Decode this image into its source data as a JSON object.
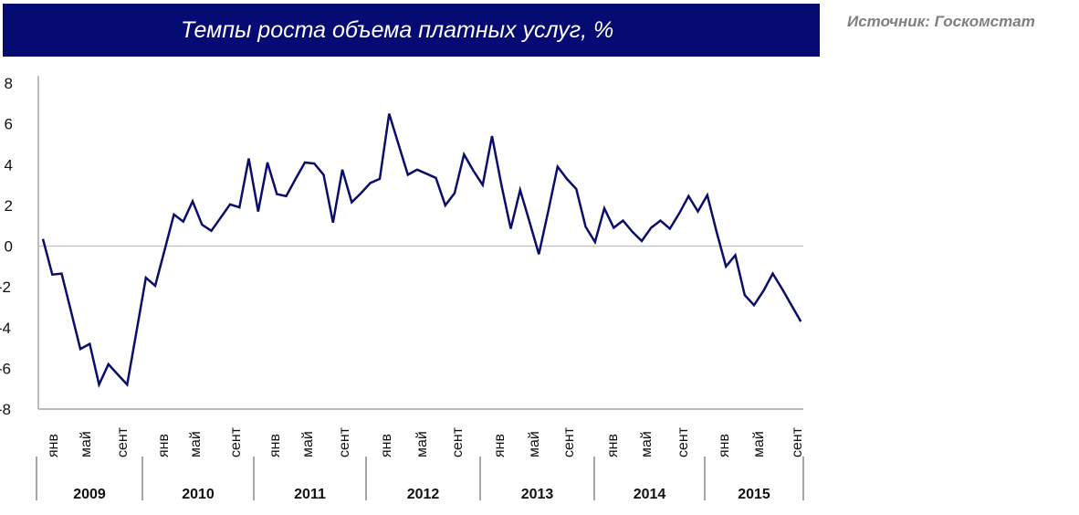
{
  "header": {
    "title": "Темпы роста объема платных услуг, %",
    "source": "Источник: Госкомстат"
  },
  "colors": {
    "title_bg": "#060a73",
    "line": "#0b0d6b",
    "axis": "#a6a6a6",
    "zero_line": "#bfbfbf",
    "source_text": "#7f7f7f"
  },
  "chart_data": {
    "type": "line",
    "title": "Темпы роста объема платных услуг, %",
    "source": "Источник: Госкомстат",
    "xlabel": "",
    "ylabel": "",
    "ylim": [
      -8,
      8
    ],
    "yticks": [
      8,
      6,
      4,
      2,
      0,
      -2,
      -4,
      -6,
      -8
    ],
    "grid": false,
    "legend": null,
    "x_month_labels": [
      "янв",
      "май",
      "сент"
    ],
    "years": [
      "2009",
      "2010",
      "2011",
      "2012",
      "2013",
      "2014",
      "2015"
    ],
    "frequency": "monthly",
    "start": "2009-01",
    "series": [
      {
        "name": "Темпы роста объема платных услуг, %",
        "values": [
          0.35,
          -1.4,
          -1.35,
          -3.2,
          -5.05,
          -4.8,
          -6.8,
          -5.8,
          -6.3,
          -6.8,
          -4.2,
          -1.55,
          -1.95,
          -0.2,
          1.55,
          1.2,
          2.2,
          1.05,
          0.75,
          1.4,
          2.05,
          1.9,
          4.3,
          1.7,
          4.1,
          2.55,
          2.45,
          3.3,
          4.1,
          4.05,
          3.5,
          1.15,
          3.75,
          2.15,
          2.6,
          3.1,
          3.3,
          6.5,
          5.0,
          3.5,
          3.75,
          3.55,
          3.35,
          2.0,
          2.6,
          4.5,
          3.7,
          3.0,
          5.4,
          3.0,
          0.85,
          2.75,
          1.2,
          -0.4,
          1.7,
          3.9,
          3.3,
          2.8,
          0.95,
          0.2,
          1.85,
          0.9,
          1.25,
          0.7,
          0.25,
          0.9,
          1.25,
          0.85,
          1.6,
          2.45,
          1.7,
          2.5,
          0.7,
          -1.0,
          -0.45,
          -2.4,
          -2.9,
          -2.2,
          -1.35,
          -2.1,
          -2.9,
          -3.7
        ]
      }
    ]
  }
}
